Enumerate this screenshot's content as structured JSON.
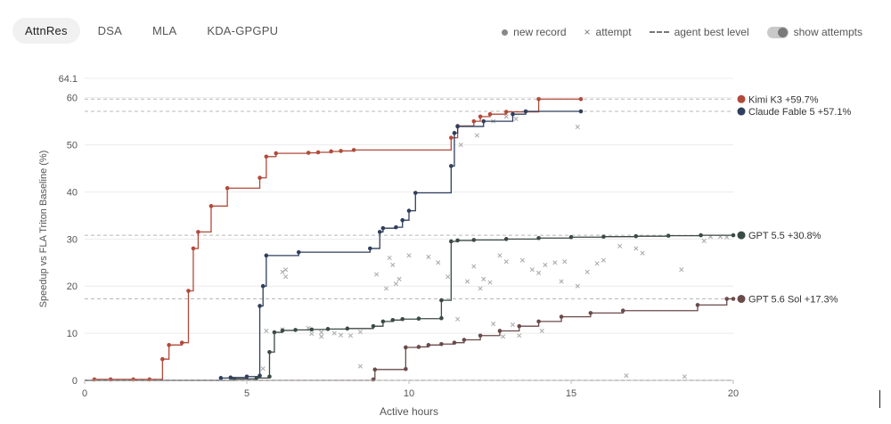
{
  "tabs": [
    {
      "label": "AttnRes",
      "active": true
    },
    {
      "label": "DSA",
      "active": false
    },
    {
      "label": "MLA",
      "active": false
    },
    {
      "label": "KDA-GPGPU",
      "active": false
    }
  ],
  "legend": {
    "new_record": "new record",
    "attempt": "attempt",
    "agent_best_level": "agent best level",
    "show_attempts": "show attempts",
    "show_attempts_on": true
  },
  "chart_data": {
    "type": "line",
    "xlabel": "Active hours",
    "ylabel": "Speedup vs FLA Triton Baseline (%)",
    "xlim": [
      0,
      20
    ],
    "ylim": [
      0,
      64.1
    ],
    "x_ticks": [
      0,
      5,
      10,
      15,
      20
    ],
    "y_ticks": [
      0,
      10,
      20,
      30,
      40,
      50,
      60,
      64.1
    ],
    "y_tick_labels": [
      "0",
      "10",
      "20",
      "30",
      "40",
      "50",
      "60",
      "64.1"
    ],
    "grid": "horizontal",
    "series": [
      {
        "name": "Kimi K3",
        "label": "Kimi K3 +59.7%",
        "final": 59.7,
        "color": "#b24a3a",
        "points": [
          [
            0,
            0
          ],
          [
            0.3,
            0.2
          ],
          [
            0.8,
            0.2
          ],
          [
            1.5,
            0.2
          ],
          [
            2.0,
            0.2
          ],
          [
            2.4,
            4.5
          ],
          [
            2.6,
            7.5
          ],
          [
            3.0,
            8.0
          ],
          [
            3.2,
            19.0
          ],
          [
            3.35,
            28.0
          ],
          [
            3.5,
            31.5
          ],
          [
            3.9,
            37.0
          ],
          [
            4.4,
            40.8
          ],
          [
            5.4,
            43.0
          ],
          [
            5.6,
            47.5
          ],
          [
            5.9,
            48.2
          ],
          [
            6.9,
            48.3
          ],
          [
            7.2,
            48.4
          ],
          [
            7.6,
            48.6
          ],
          [
            7.9,
            48.7
          ],
          [
            8.3,
            48.9
          ],
          [
            11.3,
            51.5
          ],
          [
            11.5,
            54.0
          ],
          [
            12.0,
            55.0
          ],
          [
            12.2,
            56.0
          ],
          [
            12.5,
            56.5
          ],
          [
            13.0,
            57.0
          ],
          [
            14.0,
            59.7
          ],
          [
            15.3,
            59.7
          ]
        ]
      },
      {
        "name": "Claude Fable 5",
        "label": "Claude Fable 5 +57.1%",
        "final": 57.1,
        "color": "#2f3f5c",
        "points": [
          [
            0,
            0
          ],
          [
            4.2,
            0.5
          ],
          [
            4.5,
            0.6
          ],
          [
            5.0,
            0.8
          ],
          [
            5.4,
            1.0
          ],
          [
            5.4,
            15.8
          ],
          [
            5.5,
            20.0
          ],
          [
            5.6,
            26.5
          ],
          [
            6.6,
            27.2
          ],
          [
            8.8,
            28.0
          ],
          [
            9.1,
            31.5
          ],
          [
            9.2,
            32.3
          ],
          [
            9.6,
            32.5
          ],
          [
            9.8,
            34.0
          ],
          [
            10.0,
            36.0
          ],
          [
            10.2,
            39.8
          ],
          [
            11.3,
            45.5
          ],
          [
            11.4,
            52.5
          ],
          [
            11.5,
            53.9
          ],
          [
            12.3,
            55.0
          ],
          [
            13.2,
            56.5
          ],
          [
            13.6,
            57.1
          ],
          [
            15.3,
            57.1
          ]
        ]
      },
      {
        "name": "GPT 5.5",
        "label": "GPT 5.5 +30.8%",
        "final": 30.8,
        "color": "#3c4a46",
        "points": [
          [
            0,
            0
          ],
          [
            4.6,
            0.3
          ],
          [
            5.3,
            0.5
          ],
          [
            5.7,
            0.8
          ],
          [
            5.7,
            6.0
          ],
          [
            5.85,
            10.2
          ],
          [
            6.1,
            10.6
          ],
          [
            6.5,
            10.7
          ],
          [
            7.0,
            10.8
          ],
          [
            7.5,
            10.9
          ],
          [
            8.1,
            11.0
          ],
          [
            8.9,
            11.5
          ],
          [
            9.2,
            12.5
          ],
          [
            9.5,
            12.8
          ],
          [
            9.8,
            13.0
          ],
          [
            10.3,
            13.1
          ],
          [
            11.0,
            13.2
          ],
          [
            11.0,
            17.0
          ],
          [
            11.3,
            29.5
          ],
          [
            11.5,
            29.7
          ],
          [
            12.0,
            29.8
          ],
          [
            13.0,
            30.0
          ],
          [
            14.0,
            30.2
          ],
          [
            15.0,
            30.4
          ],
          [
            16.0,
            30.5
          ],
          [
            17.0,
            30.6
          ],
          [
            18.0,
            30.7
          ],
          [
            19.0,
            30.8
          ],
          [
            20,
            30.8
          ]
        ]
      },
      {
        "name": "GPT 5.6 Sol",
        "label": "GPT 5.6 Sol +17.3%",
        "final": 17.3,
        "color": "#6b4a4a",
        "points": [
          [
            0,
            0
          ],
          [
            8.9,
            0.2
          ],
          [
            8.95,
            2.3
          ],
          [
            9.9,
            2.4
          ],
          [
            9.9,
            7.0
          ],
          [
            10.3,
            7.1
          ],
          [
            10.6,
            7.5
          ],
          [
            11.0,
            7.7
          ],
          [
            11.4,
            8.0
          ],
          [
            11.7,
            8.6
          ],
          [
            12.2,
            9.5
          ],
          [
            12.8,
            10.5
          ],
          [
            13.4,
            11.5
          ],
          [
            14.0,
            12.5
          ],
          [
            14.7,
            13.5
          ],
          [
            15.6,
            14.3
          ],
          [
            16.6,
            14.8
          ],
          [
            18.9,
            16.0
          ],
          [
            19.8,
            17.3
          ],
          [
            20,
            17.3
          ]
        ]
      }
    ],
    "attempts": [
      [
        5.5,
        2.5
      ],
      [
        5.6,
        10.5
      ],
      [
        6.1,
        10.8
      ],
      [
        6.9,
        11.1
      ],
      [
        7.0,
        9.9
      ],
      [
        7.3,
        9.3
      ],
      [
        7.3,
        10.2
      ],
      [
        7.7,
        10.0
      ],
      [
        7.9,
        9.6
      ],
      [
        8.2,
        9.5
      ],
      [
        8.5,
        10.3
      ],
      [
        6.1,
        23.0
      ],
      [
        6.2,
        23.5
      ],
      [
        6.2,
        22.0
      ],
      [
        9.3,
        19.5
      ],
      [
        9.4,
        26.0
      ],
      [
        9.5,
        24.5
      ],
      [
        9.0,
        22.5
      ],
      [
        9.7,
        21.5
      ],
      [
        9.6,
        20.5
      ],
      [
        10.0,
        26.5
      ],
      [
        10.6,
        26.2
      ],
      [
        10.9,
        25.0
      ],
      [
        11.2,
        22.0
      ],
      [
        11.8,
        21.0
      ],
      [
        12.2,
        19.5
      ],
      [
        12.5,
        20.8
      ],
      [
        12.0,
        24.2
      ],
      [
        12.8,
        26.5
      ],
      [
        13.5,
        25.5
      ],
      [
        13.8,
        23.5
      ],
      [
        14.0,
        22.8
      ],
      [
        14.2,
        24.5
      ],
      [
        14.5,
        25.0
      ],
      [
        14.7,
        21.0
      ],
      [
        15.2,
        20.0
      ],
      [
        15.5,
        23.0
      ],
      [
        15.8,
        24.8
      ],
      [
        16.0,
        25.5
      ],
      [
        16.5,
        28.5
      ],
      [
        17.2,
        27.0
      ],
      [
        18.4,
        23.5
      ],
      [
        19.1,
        29.6
      ],
      [
        19.3,
        30.5
      ],
      [
        19.6,
        30.5
      ],
      [
        19.8,
        30.4
      ],
      [
        11.6,
        50.0
      ],
      [
        12.1,
        52.0
      ],
      [
        12.6,
        55.0
      ],
      [
        13.0,
        56.0
      ],
      [
        13.3,
        55.5
      ],
      [
        15.2,
        53.8
      ],
      [
        11.5,
        13.0
      ],
      [
        12.6,
        12.0
      ],
      [
        13.2,
        11.8
      ],
      [
        14.1,
        10.5
      ],
      [
        13.4,
        9.5
      ],
      [
        12.9,
        9.3
      ],
      [
        8.5,
        3.0
      ],
      [
        16.7,
        1.0
      ],
      [
        18.5,
        0.8
      ],
      [
        14.8,
        25.2
      ],
      [
        17.0,
        28.0
      ],
      [
        12.3,
        21.5
      ],
      [
        13.0,
        25.2
      ]
    ]
  }
}
